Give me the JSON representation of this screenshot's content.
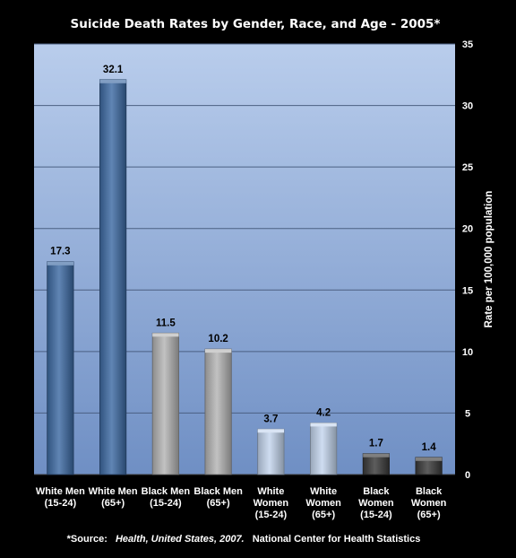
{
  "chart_data": {
    "type": "bar",
    "title": "Suicide Death Rates by Gender, Race, and Age - 2005*",
    "ylabel": "Rate per 100,000 population",
    "xlabel": "",
    "ylim": [
      0,
      35
    ],
    "yticks": [
      0,
      5,
      10,
      15,
      20,
      25,
      30,
      35
    ],
    "y_axis_side": "right",
    "grid": true,
    "legend": "none",
    "categories": [
      [
        "White Men",
        "(15-24)"
      ],
      [
        "White Men",
        "(65+)"
      ],
      [
        "Black Men",
        "(15-24)"
      ],
      [
        "Black Men",
        "(65+)"
      ],
      [
        "White",
        "Women",
        "(15-24)"
      ],
      [
        "White",
        "Women",
        "(65+)"
      ],
      [
        "Black",
        "Women",
        "(15-24)"
      ],
      [
        "Black",
        "Women",
        "(65+)"
      ]
    ],
    "values": [
      17.3,
      32.1,
      11.5,
      10.2,
      3.7,
      4.2,
      1.7,
      1.4
    ],
    "value_labels": [
      "17.3",
      "32.1",
      "11.5",
      "10.2",
      "3.7",
      "4.2",
      "1.7",
      "1.4"
    ],
    "bar_colors": [
      "#3d6aa3",
      "#3d6aa3",
      "#b5b5b5",
      "#b5b5b5",
      "#c4d6ee",
      "#c4d6ee",
      "#3a3a3a",
      "#3a3a3a"
    ],
    "plot_background": [
      "#b9cdec",
      "#6f8fc4"
    ],
    "source": {
      "prefix": "*Source:",
      "italic": "Health, United States, 2007.",
      "suffix": "National Center for Health Statistics"
    }
  }
}
